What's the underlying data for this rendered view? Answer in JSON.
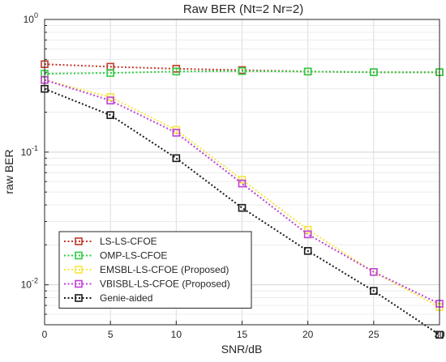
{
  "chart_data": {
    "type": "line",
    "title": "Raw BER (Nt=2 Nr=2)",
    "xlabel": "SNR/dB",
    "ylabel": "raw BER",
    "x": [
      0,
      5,
      10,
      15,
      20,
      25,
      30
    ],
    "xlim": [
      0,
      30
    ],
    "ylim": [
      0.005,
      1
    ],
    "yscale": "log",
    "grid": true,
    "legend_position": "bottom-left",
    "x_ticks": [
      "0",
      "5",
      "10",
      "15",
      "20",
      "25",
      "30"
    ],
    "y_ticks": [
      {
        "value": 1,
        "base": "10",
        "exp": "0"
      },
      {
        "value": 0.1,
        "base": "10",
        "exp": "-1"
      },
      {
        "value": 0.01,
        "base": "10",
        "exp": "-2"
      }
    ],
    "series": [
      {
        "name": "LS-LS-CFOE",
        "color": "#c0392b",
        "marker": "square",
        "values": [
          0.46,
          0.44,
          0.425,
          0.415,
          0.405,
          0.4,
          0.4
        ]
      },
      {
        "name": "OMP-LS-CFOE",
        "color": "#2ecc40",
        "marker": "square",
        "values": [
          0.39,
          0.395,
          0.405,
          0.408,
          0.405,
          0.4,
          0.4
        ]
      },
      {
        "name": "EMSBL-LS-CFOE (Proposed)",
        "color": "#f5e642",
        "marker": "square",
        "values": [
          0.35,
          0.26,
          0.147,
          0.062,
          0.026,
          0.0125,
          0.0068
        ]
      },
      {
        "name": "VBISBL-LS-CFOE (Proposed)",
        "color": "#c040d8",
        "marker": "square",
        "values": [
          0.35,
          0.245,
          0.14,
          0.058,
          0.024,
          0.0125,
          0.0072
        ]
      },
      {
        "name": "Genie-aided",
        "color": "#1a1a1a",
        "marker": "square",
        "values": [
          0.3,
          0.19,
          0.09,
          0.038,
          0.018,
          0.009,
          0.0042
        ]
      }
    ]
  }
}
